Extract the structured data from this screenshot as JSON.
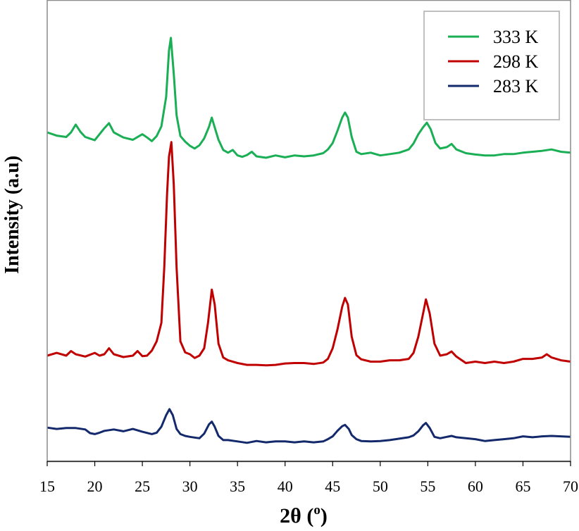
{
  "chart_data": {
    "type": "line",
    "title": "",
    "xlabel": "2θ (",
    "xlabel_sup": "o",
    "xlabel_close": ")",
    "ylabel": "Intensity (a.u)",
    "xlim": [
      15,
      70
    ],
    "ylim": [
      0,
      100
    ],
    "x_ticks": [
      15,
      20,
      25,
      30,
      35,
      40,
      45,
      50,
      55,
      60,
      65,
      70
    ],
    "y_ticks_shown": false,
    "grid": false,
    "legend_position": "top-right",
    "series": [
      {
        "name": "333 K",
        "color": "#1aaf54",
        "points": [
          [
            15,
            71.3
          ],
          [
            16,
            70.6
          ],
          [
            17,
            70.3
          ],
          [
            17.5,
            71.3
          ],
          [
            18,
            73
          ],
          [
            18.5,
            71.4
          ],
          [
            19,
            70.3
          ],
          [
            20,
            69.6
          ],
          [
            20.5,
            70.9
          ],
          [
            21,
            72.2
          ],
          [
            21.5,
            73.3
          ],
          [
            22,
            71.3
          ],
          [
            23,
            70.2
          ],
          [
            24,
            69.7
          ],
          [
            25,
            70.9
          ],
          [
            25.5,
            70.2
          ],
          [
            26,
            69.4
          ],
          [
            26.5,
            70.5
          ],
          [
            27,
            72.6
          ],
          [
            27.5,
            79
          ],
          [
            27.8,
            89
          ],
          [
            28,
            91.8
          ],
          [
            28.3,
            84
          ],
          [
            28.6,
            75
          ],
          [
            29,
            70.5
          ],
          [
            29.5,
            69.3
          ],
          [
            30,
            68.4
          ],
          [
            30.5,
            67.8
          ],
          [
            31,
            68.5
          ],
          [
            31.5,
            70
          ],
          [
            32,
            72.5
          ],
          [
            32.3,
            74.5
          ],
          [
            32.6,
            72.4
          ],
          [
            33,
            69.7
          ],
          [
            33.5,
            67.5
          ],
          [
            34,
            66.9
          ],
          [
            34.5,
            67.5
          ],
          [
            35,
            66.3
          ],
          [
            35.5,
            66
          ],
          [
            36,
            66.4
          ],
          [
            36.5,
            67.1
          ],
          [
            37,
            66.1
          ],
          [
            38,
            65.8
          ],
          [
            39,
            66.3
          ],
          [
            40,
            65.9
          ],
          [
            41,
            66.3
          ],
          [
            42,
            66.1
          ],
          [
            43,
            66.3
          ],
          [
            44,
            66.8
          ],
          [
            44.5,
            67.6
          ],
          [
            45,
            69
          ],
          [
            45.5,
            71.6
          ],
          [
            46,
            74.5
          ],
          [
            46.3,
            75.6
          ],
          [
            46.6,
            74.5
          ],
          [
            47,
            70.3
          ],
          [
            47.5,
            67.1
          ],
          [
            48,
            66.6
          ],
          [
            49,
            66.9
          ],
          [
            50,
            66.3
          ],
          [
            51,
            66.6
          ],
          [
            52,
            66.9
          ],
          [
            53,
            67.6
          ],
          [
            53.5,
            68.9
          ],
          [
            54,
            70.9
          ],
          [
            54.5,
            72.4
          ],
          [
            54.9,
            73.4
          ],
          [
            55.3,
            72
          ],
          [
            55.8,
            69
          ],
          [
            56.3,
            67.8
          ],
          [
            57,
            68.1
          ],
          [
            57.5,
            68.8
          ],
          [
            58,
            67.6
          ],
          [
            59,
            66.8
          ],
          [
            60,
            66.5
          ],
          [
            61,
            66.3
          ],
          [
            62,
            66.3
          ],
          [
            63,
            66.6
          ],
          [
            64,
            66.6
          ],
          [
            65,
            66.9
          ],
          [
            66,
            67.1
          ],
          [
            67,
            67.3
          ],
          [
            68,
            67.6
          ],
          [
            69,
            67.1
          ],
          [
            70,
            66.9
          ]
        ]
      },
      {
        "name": "298 K",
        "color": "#c00000",
        "points": [
          [
            15,
            22.9
          ],
          [
            16,
            23.5
          ],
          [
            17,
            22.9
          ],
          [
            17.5,
            23.9
          ],
          [
            18,
            23.2
          ],
          [
            19,
            22.7
          ],
          [
            20,
            23.5
          ],
          [
            20.5,
            22.9
          ],
          [
            21,
            23.2
          ],
          [
            21.5,
            24.5
          ],
          [
            22,
            23.2
          ],
          [
            23,
            22.6
          ],
          [
            24,
            22.9
          ],
          [
            24.5,
            23.9
          ],
          [
            25,
            22.8
          ],
          [
            25.5,
            22.9
          ],
          [
            26,
            24
          ],
          [
            26.5,
            26
          ],
          [
            27,
            30
          ],
          [
            27.3,
            42
          ],
          [
            27.6,
            58
          ],
          [
            27.8,
            66
          ],
          [
            28.05,
            69.2
          ],
          [
            28.3,
            60
          ],
          [
            28.6,
            42
          ],
          [
            29,
            26
          ],
          [
            29.5,
            23.6
          ],
          [
            30,
            23.2
          ],
          [
            30.5,
            22.4
          ],
          [
            31,
            22.9
          ],
          [
            31.5,
            24.5
          ],
          [
            31.9,
            30
          ],
          [
            32.3,
            37.2
          ],
          [
            32.6,
            34
          ],
          [
            33,
            25.5
          ],
          [
            33.5,
            22.5
          ],
          [
            34,
            21.9
          ],
          [
            35,
            21.3
          ],
          [
            36,
            20.9
          ],
          [
            37,
            20.9
          ],
          [
            38,
            20.8
          ],
          [
            39,
            20.9
          ],
          [
            40,
            21.2
          ],
          [
            41,
            21.3
          ],
          [
            42,
            21.3
          ],
          [
            43,
            21.1
          ],
          [
            44,
            21.4
          ],
          [
            44.5,
            22.2
          ],
          [
            45,
            24.5
          ],
          [
            45.5,
            28.5
          ],
          [
            46,
            33.5
          ],
          [
            46.3,
            35.4
          ],
          [
            46.6,
            34
          ],
          [
            47,
            27
          ],
          [
            47.5,
            23
          ],
          [
            48,
            22.1
          ],
          [
            49,
            21.6
          ],
          [
            50,
            21.6
          ],
          [
            51,
            21.9
          ],
          [
            52,
            21.9
          ],
          [
            53,
            22.2
          ],
          [
            53.5,
            23.5
          ],
          [
            54,
            27
          ],
          [
            54.5,
            32
          ],
          [
            54.8,
            35.1
          ],
          [
            55.2,
            32
          ],
          [
            55.7,
            25.5
          ],
          [
            56.3,
            22.9
          ],
          [
            57,
            23.2
          ],
          [
            57.5,
            23.8
          ],
          [
            58,
            22.7
          ],
          [
            59,
            21.3
          ],
          [
            60,
            21.6
          ],
          [
            61,
            21.3
          ],
          [
            62,
            21.6
          ],
          [
            63,
            21.3
          ],
          [
            64,
            21.6
          ],
          [
            65,
            22.2
          ],
          [
            66,
            22.2
          ],
          [
            67,
            22.5
          ],
          [
            67.5,
            23.2
          ],
          [
            68,
            22.5
          ],
          [
            69,
            21.9
          ],
          [
            70,
            21.6
          ]
        ]
      },
      {
        "name": "283 K",
        "color": "#13296b",
        "points": [
          [
            15,
            7.3
          ],
          [
            16,
            7
          ],
          [
            17,
            7.2
          ],
          [
            18,
            7.2
          ],
          [
            19,
            6.9
          ],
          [
            19.5,
            6.1
          ],
          [
            20,
            5.9
          ],
          [
            20.5,
            6.2
          ],
          [
            21,
            6.6
          ],
          [
            22,
            6.9
          ],
          [
            23,
            6.5
          ],
          [
            24,
            7
          ],
          [
            25,
            6.4
          ],
          [
            26,
            5.9
          ],
          [
            26.5,
            6.2
          ],
          [
            27,
            7.5
          ],
          [
            27.5,
            10
          ],
          [
            27.85,
            11.3
          ],
          [
            28.2,
            10
          ],
          [
            28.6,
            7
          ],
          [
            29,
            5.9
          ],
          [
            29.5,
            5.5
          ],
          [
            30,
            5.3
          ],
          [
            31,
            5
          ],
          [
            31.5,
            6
          ],
          [
            32,
            8
          ],
          [
            32.3,
            8.6
          ],
          [
            32.6,
            7.5
          ],
          [
            33,
            5.5
          ],
          [
            33.5,
            4.6
          ],
          [
            34,
            4.6
          ],
          [
            35,
            4.3
          ],
          [
            36,
            4
          ],
          [
            37,
            4.4
          ],
          [
            38,
            4.1
          ],
          [
            39,
            4.3
          ],
          [
            40,
            4.3
          ],
          [
            41,
            4.1
          ],
          [
            42,
            4.3
          ],
          [
            43,
            4.1
          ],
          [
            44,
            4.3
          ],
          [
            44.5,
            4.8
          ],
          [
            45,
            5.4
          ],
          [
            45.5,
            6.6
          ],
          [
            46,
            7.6
          ],
          [
            46.3,
            7.9
          ],
          [
            46.7,
            7
          ],
          [
            47,
            5.7
          ],
          [
            47.5,
            4.8
          ],
          [
            48,
            4.4
          ],
          [
            49,
            4.3
          ],
          [
            50,
            4.4
          ],
          [
            51,
            4.6
          ],
          [
            52,
            4.9
          ],
          [
            53,
            5.2
          ],
          [
            53.5,
            5.6
          ],
          [
            54,
            6.5
          ],
          [
            54.5,
            7.8
          ],
          [
            54.8,
            8.3
          ],
          [
            55.2,
            7.2
          ],
          [
            55.7,
            5.3
          ],
          [
            56.3,
            5
          ],
          [
            57,
            5.3
          ],
          [
            57.5,
            5.5
          ],
          [
            58,
            5.2
          ],
          [
            59,
            5
          ],
          [
            60,
            4.8
          ],
          [
            61,
            4.4
          ],
          [
            62,
            4.6
          ],
          [
            63,
            4.8
          ],
          [
            64,
            5
          ],
          [
            65,
            5.4
          ],
          [
            66,
            5.2
          ],
          [
            67,
            5.4
          ],
          [
            68,
            5.5
          ],
          [
            69,
            5.4
          ],
          [
            70,
            5.3
          ]
        ]
      }
    ],
    "legend_order": [
      "333 K",
      "298 K",
      "283 K"
    ]
  }
}
